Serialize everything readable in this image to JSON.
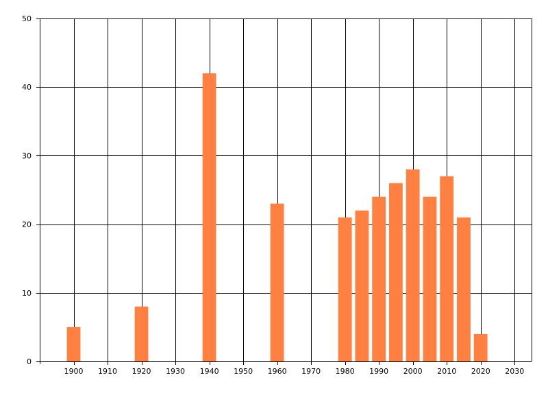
{
  "chart_data": {
    "type": "bar",
    "title": "",
    "xlabel": "",
    "ylabel": "",
    "x": [
      1900,
      1920,
      1940,
      1960,
      1980,
      1985,
      1990,
      1995,
      2000,
      2005,
      2010,
      2015,
      2020
    ],
    "values": [
      5,
      8,
      42,
      23,
      21,
      22,
      24,
      26,
      28,
      24,
      27,
      21,
      4
    ],
    "xlim": [
      1890,
      2035
    ],
    "ylim": [
      0,
      50
    ],
    "x_ticks": [
      1900,
      1910,
      1920,
      1930,
      1940,
      1950,
      1960,
      1970,
      1980,
      1990,
      2000,
      2010,
      2020,
      2030
    ],
    "y_ticks": [
      0,
      10,
      20,
      30,
      40,
      50
    ],
    "x_tick_labels": [
      "1900",
      "1910",
      "1920",
      "1930",
      "1940",
      "1950",
      "1960",
      "1970",
      "1980",
      "1990",
      "2000",
      "2010",
      "2020",
      "2030"
    ],
    "y_tick_labels": [
      "0",
      "10",
      "20",
      "30",
      "40",
      "50"
    ],
    "grid": true,
    "legend": "none",
    "bar_width_years": 4,
    "colors": {
      "bar": "#ff8040",
      "grid": "#000000",
      "axis": "#000000",
      "background": "#ffffff"
    }
  }
}
